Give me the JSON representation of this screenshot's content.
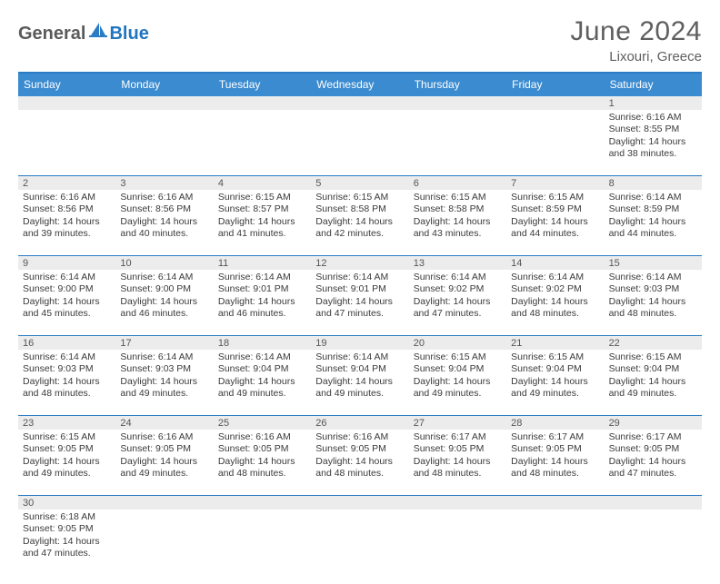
{
  "logo": {
    "part1": "General",
    "part2": "Blue"
  },
  "title": {
    "month": "June 2024",
    "location": "Lixouri, Greece"
  },
  "colors": {
    "header_bg": "#3b8bd0",
    "border": "#2a7cc4",
    "numrow_bg": "#ececec",
    "text": "#3a3a3a",
    "logo_gray": "#5a5a5a",
    "logo_blue": "#2176c1"
  },
  "daynames": [
    "Sunday",
    "Monday",
    "Tuesday",
    "Wednesday",
    "Thursday",
    "Friday",
    "Saturday"
  ],
  "weeks": [
    {
      "nums": [
        "",
        "",
        "",
        "",
        "",
        "",
        "1"
      ],
      "cells": [
        null,
        null,
        null,
        null,
        null,
        null,
        {
          "sr": "Sunrise: 6:16 AM",
          "ss": "Sunset: 8:55 PM",
          "d1": "Daylight: 14 hours",
          "d2": "and 38 minutes."
        }
      ]
    },
    {
      "nums": [
        "2",
        "3",
        "4",
        "5",
        "6",
        "7",
        "8"
      ],
      "cells": [
        {
          "sr": "Sunrise: 6:16 AM",
          "ss": "Sunset: 8:56 PM",
          "d1": "Daylight: 14 hours",
          "d2": "and 39 minutes."
        },
        {
          "sr": "Sunrise: 6:16 AM",
          "ss": "Sunset: 8:56 PM",
          "d1": "Daylight: 14 hours",
          "d2": "and 40 minutes."
        },
        {
          "sr": "Sunrise: 6:15 AM",
          "ss": "Sunset: 8:57 PM",
          "d1": "Daylight: 14 hours",
          "d2": "and 41 minutes."
        },
        {
          "sr": "Sunrise: 6:15 AM",
          "ss": "Sunset: 8:58 PM",
          "d1": "Daylight: 14 hours",
          "d2": "and 42 minutes."
        },
        {
          "sr": "Sunrise: 6:15 AM",
          "ss": "Sunset: 8:58 PM",
          "d1": "Daylight: 14 hours",
          "d2": "and 43 minutes."
        },
        {
          "sr": "Sunrise: 6:15 AM",
          "ss": "Sunset: 8:59 PM",
          "d1": "Daylight: 14 hours",
          "d2": "and 44 minutes."
        },
        {
          "sr": "Sunrise: 6:14 AM",
          "ss": "Sunset: 8:59 PM",
          "d1": "Daylight: 14 hours",
          "d2": "and 44 minutes."
        }
      ]
    },
    {
      "nums": [
        "9",
        "10",
        "11",
        "12",
        "13",
        "14",
        "15"
      ],
      "cells": [
        {
          "sr": "Sunrise: 6:14 AM",
          "ss": "Sunset: 9:00 PM",
          "d1": "Daylight: 14 hours",
          "d2": "and 45 minutes."
        },
        {
          "sr": "Sunrise: 6:14 AM",
          "ss": "Sunset: 9:00 PM",
          "d1": "Daylight: 14 hours",
          "d2": "and 46 minutes."
        },
        {
          "sr": "Sunrise: 6:14 AM",
          "ss": "Sunset: 9:01 PM",
          "d1": "Daylight: 14 hours",
          "d2": "and 46 minutes."
        },
        {
          "sr": "Sunrise: 6:14 AM",
          "ss": "Sunset: 9:01 PM",
          "d1": "Daylight: 14 hours",
          "d2": "and 47 minutes."
        },
        {
          "sr": "Sunrise: 6:14 AM",
          "ss": "Sunset: 9:02 PM",
          "d1": "Daylight: 14 hours",
          "d2": "and 47 minutes."
        },
        {
          "sr": "Sunrise: 6:14 AM",
          "ss": "Sunset: 9:02 PM",
          "d1": "Daylight: 14 hours",
          "d2": "and 48 minutes."
        },
        {
          "sr": "Sunrise: 6:14 AM",
          "ss": "Sunset: 9:03 PM",
          "d1": "Daylight: 14 hours",
          "d2": "and 48 minutes."
        }
      ]
    },
    {
      "nums": [
        "16",
        "17",
        "18",
        "19",
        "20",
        "21",
        "22"
      ],
      "cells": [
        {
          "sr": "Sunrise: 6:14 AM",
          "ss": "Sunset: 9:03 PM",
          "d1": "Daylight: 14 hours",
          "d2": "and 48 minutes."
        },
        {
          "sr": "Sunrise: 6:14 AM",
          "ss": "Sunset: 9:03 PM",
          "d1": "Daylight: 14 hours",
          "d2": "and 49 minutes."
        },
        {
          "sr": "Sunrise: 6:14 AM",
          "ss": "Sunset: 9:04 PM",
          "d1": "Daylight: 14 hours",
          "d2": "and 49 minutes."
        },
        {
          "sr": "Sunrise: 6:14 AM",
          "ss": "Sunset: 9:04 PM",
          "d1": "Daylight: 14 hours",
          "d2": "and 49 minutes."
        },
        {
          "sr": "Sunrise: 6:15 AM",
          "ss": "Sunset: 9:04 PM",
          "d1": "Daylight: 14 hours",
          "d2": "and 49 minutes."
        },
        {
          "sr": "Sunrise: 6:15 AM",
          "ss": "Sunset: 9:04 PM",
          "d1": "Daylight: 14 hours",
          "d2": "and 49 minutes."
        },
        {
          "sr": "Sunrise: 6:15 AM",
          "ss": "Sunset: 9:04 PM",
          "d1": "Daylight: 14 hours",
          "d2": "and 49 minutes."
        }
      ]
    },
    {
      "nums": [
        "23",
        "24",
        "25",
        "26",
        "27",
        "28",
        "29"
      ],
      "cells": [
        {
          "sr": "Sunrise: 6:15 AM",
          "ss": "Sunset: 9:05 PM",
          "d1": "Daylight: 14 hours",
          "d2": "and 49 minutes."
        },
        {
          "sr": "Sunrise: 6:16 AM",
          "ss": "Sunset: 9:05 PM",
          "d1": "Daylight: 14 hours",
          "d2": "and 49 minutes."
        },
        {
          "sr": "Sunrise: 6:16 AM",
          "ss": "Sunset: 9:05 PM",
          "d1": "Daylight: 14 hours",
          "d2": "and 48 minutes."
        },
        {
          "sr": "Sunrise: 6:16 AM",
          "ss": "Sunset: 9:05 PM",
          "d1": "Daylight: 14 hours",
          "d2": "and 48 minutes."
        },
        {
          "sr": "Sunrise: 6:17 AM",
          "ss": "Sunset: 9:05 PM",
          "d1": "Daylight: 14 hours",
          "d2": "and 48 minutes."
        },
        {
          "sr": "Sunrise: 6:17 AM",
          "ss": "Sunset: 9:05 PM",
          "d1": "Daylight: 14 hours",
          "d2": "and 48 minutes."
        },
        {
          "sr": "Sunrise: 6:17 AM",
          "ss": "Sunset: 9:05 PM",
          "d1": "Daylight: 14 hours",
          "d2": "and 47 minutes."
        }
      ]
    },
    {
      "nums": [
        "30",
        "",
        "",
        "",
        "",
        "",
        ""
      ],
      "cells": [
        {
          "sr": "Sunrise: 6:18 AM",
          "ss": "Sunset: 9:05 PM",
          "d1": "Daylight: 14 hours",
          "d2": "and 47 minutes."
        },
        null,
        null,
        null,
        null,
        null,
        null
      ]
    }
  ]
}
